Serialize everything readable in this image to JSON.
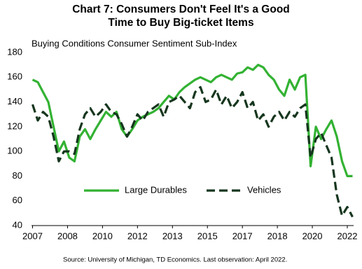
{
  "chart_data": {
    "type": "line",
    "title": "Chart 7: Consumers Don't Feel It's a Good Time to Buy Big-ticket Items",
    "subtitle": "Buying Conditions Consumer Sentiment Sub-Index",
    "source": "Source: University of Michigan, TD Economics. Last observation: April 2022.",
    "x": [
      2007.0,
      2007.25,
      2007.5,
      2007.75,
      2008.0,
      2008.25,
      2008.5,
      2008.75,
      2009.0,
      2009.25,
      2009.5,
      2009.75,
      2010.0,
      2010.25,
      2010.5,
      2010.75,
      2011.0,
      2011.25,
      2011.5,
      2011.75,
      2012.0,
      2012.25,
      2012.5,
      2012.75,
      2013.0,
      2013.25,
      2013.5,
      2013.75,
      2014.0,
      2014.25,
      2014.5,
      2014.75,
      2015.0,
      2015.25,
      2015.5,
      2015.75,
      2016.0,
      2016.25,
      2016.5,
      2016.75,
      2017.0,
      2017.25,
      2017.5,
      2017.75,
      2018.0,
      2018.25,
      2018.5,
      2018.75,
      2019.0,
      2019.25,
      2019.5,
      2019.75,
      2020.0,
      2020.25,
      2020.5,
      2020.75,
      2021.0,
      2021.25,
      2021.5,
      2021.75,
      2022.0,
      2022.25
    ],
    "series": [
      {
        "name": "Large Durables",
        "color": "#33b233",
        "dash": false,
        "values": [
          158,
          156,
          148,
          140,
          120,
          100,
          108,
          95,
          92,
          112,
          118,
          110,
          118,
          125,
          132,
          128,
          132,
          118,
          112,
          118,
          125,
          128,
          130,
          132,
          135,
          140,
          145,
          142,
          148,
          152,
          155,
          158,
          160,
          158,
          156,
          160,
          162,
          160,
          158,
          163,
          164,
          168,
          166,
          170,
          168,
          162,
          158,
          150,
          145,
          158,
          150,
          160,
          162,
          88,
          120,
          110,
          118,
          125,
          112,
          92,
          80,
          80
        ]
      },
      {
        "name": "Vehicles",
        "color": "#16361e",
        "dash": true,
        "values": [
          138,
          125,
          132,
          128,
          112,
          92,
          100,
          100,
          98,
          118,
          130,
          135,
          128,
          132,
          138,
          132,
          130,
          122,
          112,
          120,
          130,
          125,
          132,
          135,
          138,
          128,
          140,
          142,
          145,
          140,
          135,
          148,
          152,
          140,
          142,
          150,
          138,
          145,
          135,
          140,
          148,
          135,
          140,
          125,
          130,
          120,
          128,
          132,
          125,
          132,
          128,
          135,
          138,
          95,
          110,
          115,
          105,
          95,
          65,
          48,
          55,
          47
        ]
      }
    ],
    "xlim": [
      2006.95,
      2022.3
    ],
    "xticks": [
      {
        "value": 2007.0,
        "label": "2007"
      },
      {
        "value": 2008.667,
        "label": "2008"
      },
      {
        "value": 2010.333,
        "label": "2010"
      },
      {
        "value": 2012.0,
        "label": "2012"
      },
      {
        "value": 2013.667,
        "label": "2013"
      },
      {
        "value": 2015.333,
        "label": "2015"
      },
      {
        "value": 2017.0,
        "label": "2017"
      },
      {
        "value": 2018.667,
        "label": "2018"
      },
      {
        "value": 2020.333,
        "label": "2020"
      },
      {
        "value": 2022.0,
        "label": "2022"
      }
    ],
    "ylim": [
      40,
      180
    ],
    "yticks": [
      40,
      60,
      80,
      100,
      120,
      140,
      160,
      180
    ],
    "legend": "bottom",
    "grid": false
  }
}
